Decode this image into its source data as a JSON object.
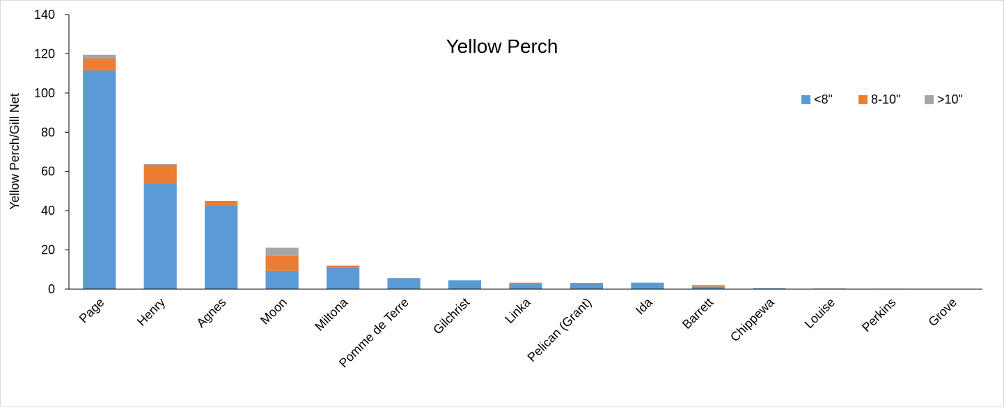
{
  "chart_data": {
    "type": "bar",
    "stacked": true,
    "title": "Yellow Perch",
    "xlabel": "",
    "ylabel": "Yellow Perch/Gill Net",
    "ylim": [
      0,
      140
    ],
    "yticks": [
      "0",
      "20",
      "40",
      "60",
      "80",
      "100",
      "120",
      "140"
    ],
    "grid": false,
    "legend_position": "top-right",
    "categories": [
      "Page",
      "Henry",
      "Agnes",
      "Moon",
      "Miltona",
      "Pomme de Terre",
      "Gilchrist",
      "Linka",
      "Pelican (Grant)",
      "Ida",
      "Barrett",
      "Chippewa",
      "Louise",
      "Perkins",
      "Grove"
    ],
    "series": [
      {
        "name": "<8\"",
        "color": "#5b9bd5",
        "values": [
          111.5,
          54.0,
          42.5,
          9.3,
          11.3,
          5.6,
          4.5,
          2.8,
          3.0,
          3.3,
          1.2,
          0.5,
          0.3,
          0.2,
          0.1
        ]
      },
      {
        "name": "8-10\"",
        "color": "#ed7d31",
        "values": [
          6.0,
          9.5,
          2.5,
          7.8,
          0.7,
          0.0,
          0.0,
          0.5,
          0.2,
          0.0,
          0.3,
          0.0,
          0.0,
          0.0,
          0.0
        ]
      },
      {
        "name": ">10\"",
        "color": "#a5a5a5",
        "values": [
          2.0,
          0.3,
          0.0,
          4.0,
          0.0,
          0.0,
          0.0,
          0.0,
          0.0,
          0.0,
          0.6,
          0.0,
          0.0,
          0.0,
          0.0
        ]
      }
    ]
  }
}
